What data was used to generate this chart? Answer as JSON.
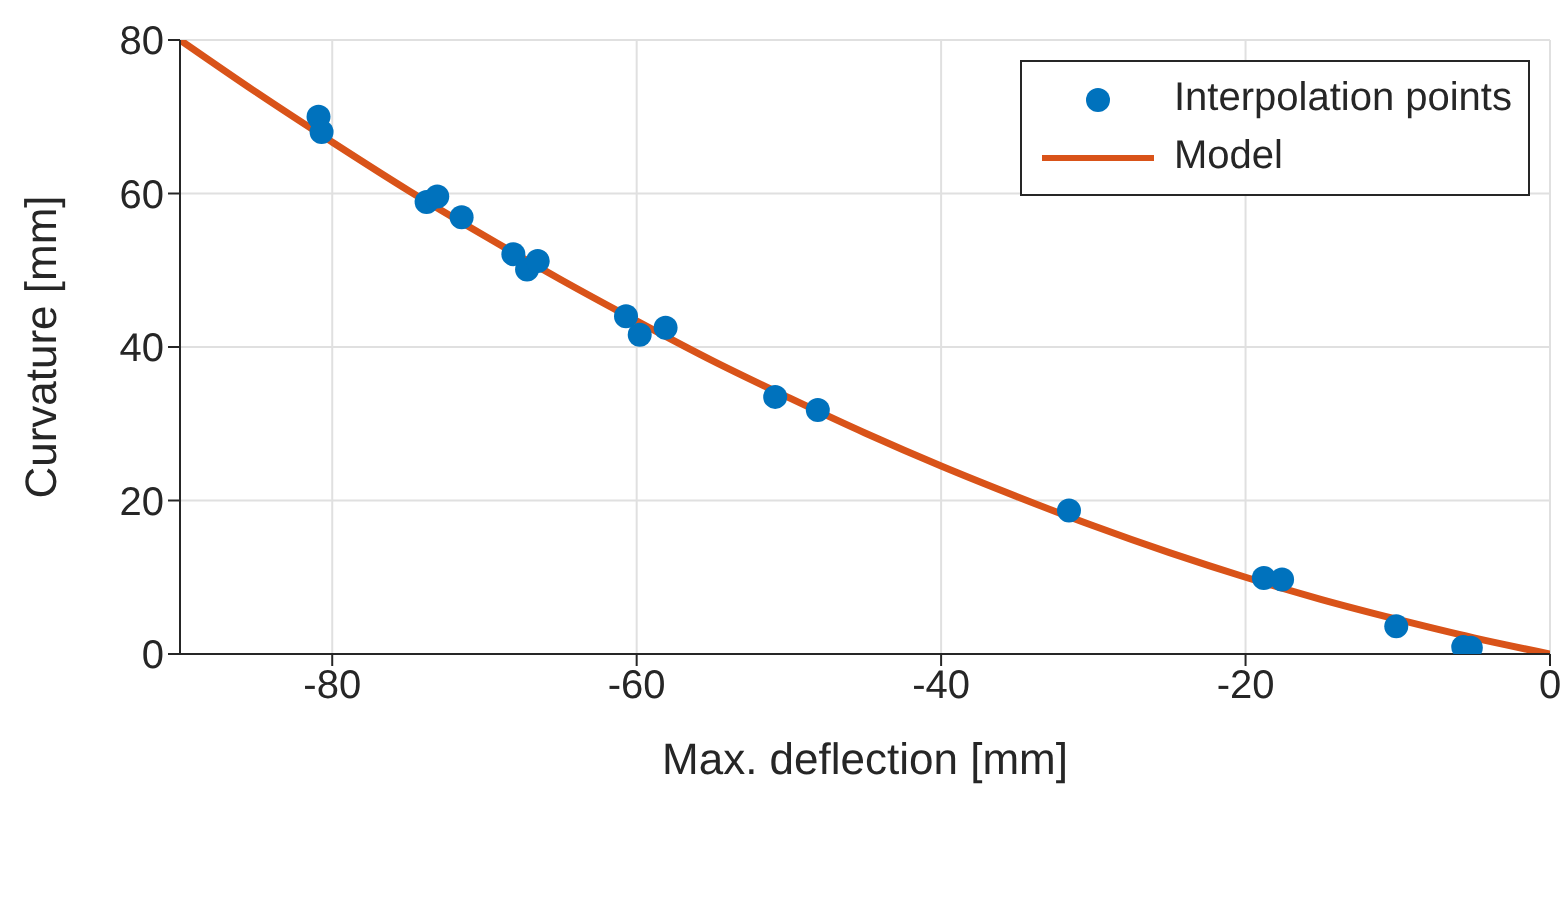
{
  "chart_data": {
    "type": "scatter",
    "xlabel": "Max. deflection [mm]",
    "ylabel": "Curvature [mm]",
    "xlim": [
      -90,
      0
    ],
    "xticks": [
      -80,
      -60,
      -40,
      -20,
      0
    ],
    "ylim": [
      0,
      80
    ],
    "yticks": [
      0,
      20,
      40,
      60,
      80
    ],
    "grid": true,
    "legend": "top right",
    "series": [
      {
        "name": "Interpolation points",
        "color": "#0072bd",
        "marker": "circle",
        "x": [
          -80.9,
          -80.7,
          -73.8,
          -73.1,
          -71.5,
          -68.1,
          -67.2,
          -66.5,
          -60.7,
          -59.8,
          -58.1,
          -50.9,
          -48.1,
          -31.6,
          -18.8,
          -17.6,
          -10.1,
          -5.7,
          -5.2
        ],
        "values": [
          70,
          68,
          58.9,
          59.6,
          56.9,
          52.1,
          50.1,
          51.2,
          44.0,
          41.6,
          42.5,
          33.5,
          31.8,
          18.7,
          9.9,
          9.7,
          3.6,
          0.9,
          0.8
        ]
      },
      {
        "name": "Model",
        "type": "line",
        "color": "#d95319",
        "marker": "none",
        "line_style": "solid",
        "x": [
          -90,
          -85,
          -80,
          -75,
          -70,
          -65,
          -60,
          -55,
          -50,
          -45,
          -40,
          -35,
          -30,
          -25,
          -20,
          -15,
          -10,
          -5,
          0
        ],
        "values": [
          80,
          73.2,
          66.7,
          60.4,
          54.5,
          48.8,
          43.4,
          38.2,
          33.4,
          28.8,
          24.5,
          20.5,
          16.7,
          13.2,
          10.0,
          7.1,
          4.5,
          2.1,
          0
        ]
      }
    ]
  }
}
